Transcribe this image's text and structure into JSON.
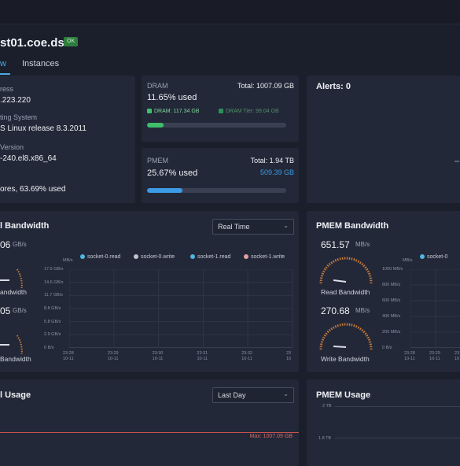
{
  "header": {
    "host_partial": "st01.coe.dsc",
    "status_badge": "OK",
    "tabs": [
      {
        "label": "w",
        "active": true
      },
      {
        "label": "Instances",
        "active": false
      }
    ]
  },
  "sysinfo": {
    "address_label_partial": "ress",
    "address_value_partial": ".223.220",
    "os_label_partial": "ting System",
    "os_value_partial": "S Linux release 8.3.2011",
    "kernel_label_partial": "Version",
    "kernel_value_partial": "-240.el8.x86_64",
    "cpu_value_partial": "ores, 63.69% used"
  },
  "dram": {
    "label": "DRAM",
    "total": "Total: 1007.09 GB",
    "used": "11.65% used",
    "used_fraction": 0.1165,
    "dram_legend": "DRAM: 117.34 GB",
    "tier_legend": "DRAM Tier: 99.04 GB",
    "colors": {
      "dram": "#3fbf6a",
      "tier": "#2f8f5a"
    }
  },
  "pmem": {
    "label": "PMEM",
    "total": "Total: 1.94 TB",
    "used": "25.67% used",
    "used_fraction": 0.2567,
    "used_amount": "509.39 GB",
    "color": "#3b9be6"
  },
  "alerts": {
    "label": "Alerts: 0"
  },
  "dram_bw": {
    "title_partial": "l Bandwidth",
    "select_value": "Real Time",
    "read_value_partial": "06",
    "read_unit": "GB/s",
    "read_label_partial": "andwidth",
    "write_value_partial": "05",
    "write_unit": "GB/s",
    "write_label_partial": "Bandwidth",
    "y_unit": "MB/s",
    "legend": [
      "socket-0.read",
      "socket-0.write",
      "socket-1.read",
      "socket-1.write"
    ],
    "legend_colors": [
      "#4fb6e0",
      "#c0c4cc",
      "#4fb6e0",
      "#e0a0a0"
    ],
    "y_ticks": [
      "17.6 GB/s",
      "14.6 GB/s",
      "11.7 GB/s",
      "8.8 GB/s",
      "5.8 GB/s",
      "2.9 GB/s",
      "0 B/s"
    ],
    "x_ticks": [
      {
        "t": "23:28",
        "d": "10-11"
      },
      {
        "t": "23:29",
        "d": "10-11"
      },
      {
        "t": "23:30",
        "d": "10-11"
      },
      {
        "t": "23:31",
        "d": "10-11"
      },
      {
        "t": "23:32",
        "d": "10-11"
      },
      {
        "t": "23",
        "d": "10"
      }
    ]
  },
  "pmem_bw": {
    "title": "PMEM Bandwidth",
    "read_value": "651.57",
    "read_unit": "MB/s",
    "read_label": "Read Bandwidth",
    "write_value": "270.68",
    "write_unit": "MB/s",
    "write_label": "Write Bandwidth",
    "y_unit": "MB/s",
    "legend": [
      "socket-0"
    ],
    "y_ticks": [
      "1000 MB/s",
      "800 MB/s",
      "600 MB/s",
      "400 MB/s",
      "200 MB/s",
      "0 B/s"
    ],
    "x_ticks": [
      {
        "t": "23:28",
        "d": "10-11"
      },
      {
        "t": "23:29",
        "d": "10-11"
      },
      {
        "t": "23",
        "d": "10"
      }
    ]
  },
  "dram_usage": {
    "title_partial": "l Usage",
    "select_value": "Last Day",
    "max_label": "Max: 1007.09 GB"
  },
  "pmem_usage": {
    "title": "PMEM Usage",
    "y_ticks": [
      "2 TB",
      "1.8 TB"
    ]
  }
}
